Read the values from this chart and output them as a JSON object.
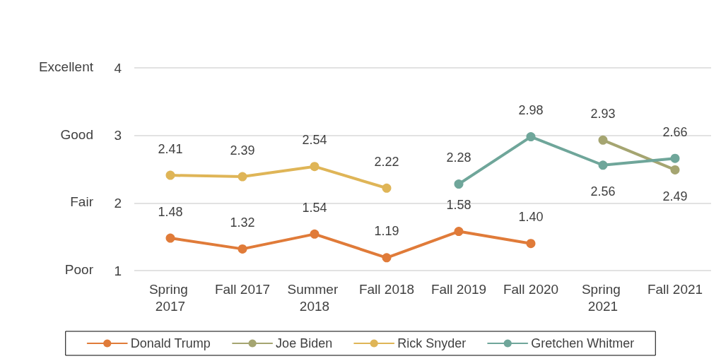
{
  "chart_data": {
    "type": "line",
    "categories": [
      "Spring 2017",
      "Fall 2017",
      "Summer 2018",
      "Fall 2018",
      "Fall 2019",
      "Fall 2020",
      "Spring 2021",
      "Fall 2021"
    ],
    "series": [
      {
        "name": "Donald Trump",
        "color": "#e07b39",
        "values": [
          1.48,
          1.32,
          1.54,
          1.19,
          1.58,
          1.4,
          null,
          null
        ],
        "value_labels": [
          "1.48",
          "1.32",
          "1.54",
          "1.19",
          "1.58",
          "1.40",
          null,
          null
        ]
      },
      {
        "name": "Joe Biden",
        "color": "#a5a571",
        "values": [
          null,
          null,
          null,
          null,
          null,
          null,
          2.93,
          2.49
        ],
        "value_labels": [
          null,
          null,
          null,
          null,
          null,
          null,
          "2.93",
          "2.49"
        ]
      },
      {
        "name": "Rick Snyder",
        "color": "#dfb557",
        "values": [
          2.41,
          2.39,
          2.54,
          2.22,
          null,
          null,
          null,
          null
        ],
        "value_labels": [
          "2.41",
          "2.39",
          "2.54",
          "2.22",
          null,
          null,
          null,
          null
        ]
      },
      {
        "name": "Gretchen Whitmer",
        "color": "#6fa69a",
        "values": [
          null,
          null,
          null,
          null,
          2.28,
          2.98,
          2.56,
          2.66
        ],
        "value_labels": [
          null,
          null,
          null,
          null,
          "2.28",
          "2.98",
          "2.56",
          "2.66"
        ]
      }
    ],
    "ylim": [
      1,
      4
    ],
    "yticks": [
      1,
      2,
      3,
      4
    ],
    "annotations": [
      "Poor",
      "Fair",
      "Good",
      "Excellent"
    ],
    "grid": "y",
    "legend": "bottom",
    "marker": "circle",
    "line_style": "solid"
  }
}
